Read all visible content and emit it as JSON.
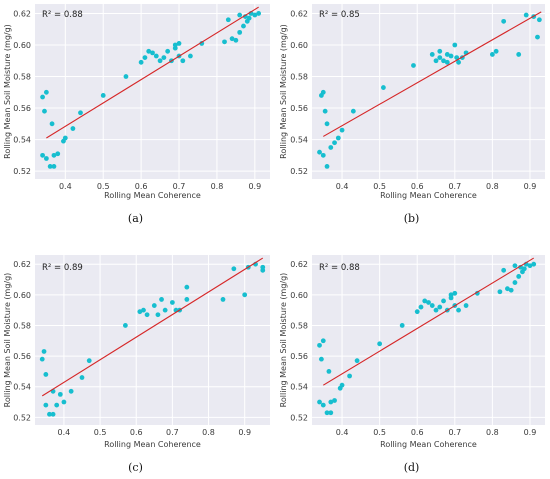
{
  "figure": {
    "colors": {
      "background": "#eaeaf2",
      "grid": "#ffffff",
      "point": "#17becf",
      "fit_line": "#d62728"
    }
  },
  "chart_data": [
    {
      "type": "scatter",
      "caption": "(a)",
      "annotation": "R² = 0.88",
      "xlabel": "Rolling Mean Coherence",
      "ylabel": "Rolling Mean Soil Moisture (mg/g)",
      "xlim": [
        0.32,
        0.94
      ],
      "ylim": [
        0.515,
        0.626
      ],
      "xticks": [
        "0.4",
        "0.5",
        "0.6",
        "0.7",
        "0.8",
        "0.9"
      ],
      "yticks": [
        "0.52",
        "0.54",
        "0.56",
        "0.58",
        "0.60",
        "0.62"
      ],
      "grid": true,
      "fit_line": {
        "x": [
          0.35,
          0.91
        ],
        "y": [
          0.541,
          0.624
        ]
      },
      "points": [
        [
          0.34,
          0.567
        ],
        [
          0.35,
          0.57
        ],
        [
          0.345,
          0.558
        ],
        [
          0.34,
          0.53
        ],
        [
          0.35,
          0.528
        ],
        [
          0.36,
          0.523
        ],
        [
          0.37,
          0.523
        ],
        [
          0.365,
          0.55
        ],
        [
          0.37,
          0.53
        ],
        [
          0.38,
          0.531
        ],
        [
          0.395,
          0.539
        ],
        [
          0.4,
          0.541
        ],
        [
          0.42,
          0.547
        ],
        [
          0.44,
          0.557
        ],
        [
          0.5,
          0.568
        ],
        [
          0.56,
          0.58
        ],
        [
          0.6,
          0.589
        ],
        [
          0.61,
          0.592
        ],
        [
          0.62,
          0.596
        ],
        [
          0.63,
          0.595
        ],
        [
          0.64,
          0.593
        ],
        [
          0.65,
          0.59
        ],
        [
          0.66,
          0.592
        ],
        [
          0.67,
          0.596
        ],
        [
          0.68,
          0.59
        ],
        [
          0.69,
          0.598
        ],
        [
          0.69,
          0.6
        ],
        [
          0.7,
          0.601
        ],
        [
          0.7,
          0.593
        ],
        [
          0.71,
          0.59
        ],
        [
          0.73,
          0.593
        ],
        [
          0.76,
          0.601
        ],
        [
          0.82,
          0.602
        ],
        [
          0.83,
          0.616
        ],
        [
          0.84,
          0.604
        ],
        [
          0.85,
          0.603
        ],
        [
          0.86,
          0.608
        ],
        [
          0.87,
          0.612
        ],
        [
          0.875,
          0.618
        ],
        [
          0.88,
          0.615
        ],
        [
          0.885,
          0.617
        ],
        [
          0.89,
          0.62
        ],
        [
          0.9,
          0.619
        ],
        [
          0.91,
          0.62
        ],
        [
          0.86,
          0.619
        ]
      ]
    },
    {
      "type": "scatter",
      "caption": "(b)",
      "annotation": "R² = 0.85",
      "xlabel": "Rolling Mean Coherence",
      "ylabel": "Rolling Mean Soil Moisture (mg/g)",
      "xlim": [
        0.32,
        0.94
      ],
      "ylim": [
        0.515,
        0.626
      ],
      "xticks": [
        "0.4",
        "0.5",
        "0.6",
        "0.7",
        "0.8",
        "0.9"
      ],
      "yticks": [
        "0.52",
        "0.54",
        "0.56",
        "0.58",
        "0.60",
        "0.62"
      ],
      "grid": true,
      "fit_line": {
        "x": [
          0.35,
          0.93
        ],
        "y": [
          0.542,
          0.621
        ]
      },
      "points": [
        [
          0.34,
          0.532
        ],
        [
          0.35,
          0.53
        ],
        [
          0.36,
          0.523
        ],
        [
          0.37,
          0.535
        ],
        [
          0.345,
          0.568
        ],
        [
          0.35,
          0.57
        ],
        [
          0.355,
          0.558
        ],
        [
          0.36,
          0.55
        ],
        [
          0.38,
          0.538
        ],
        [
          0.39,
          0.541
        ],
        [
          0.4,
          0.546
        ],
        [
          0.43,
          0.558
        ],
        [
          0.51,
          0.573
        ],
        [
          0.59,
          0.587
        ],
        [
          0.64,
          0.594
        ],
        [
          0.65,
          0.59
        ],
        [
          0.66,
          0.592
        ],
        [
          0.67,
          0.59
        ],
        [
          0.68,
          0.589
        ],
        [
          0.69,
          0.593
        ],
        [
          0.7,
          0.6
        ],
        [
          0.705,
          0.592
        ],
        [
          0.71,
          0.589
        ],
        [
          0.72,
          0.592
        ],
        [
          0.73,
          0.595
        ],
        [
          0.66,
          0.596
        ],
        [
          0.68,
          0.594
        ],
        [
          0.8,
          0.594
        ],
        [
          0.81,
          0.596
        ],
        [
          0.83,
          0.615
        ],
        [
          0.87,
          0.594
        ],
        [
          0.89,
          0.619
        ],
        [
          0.91,
          0.618
        ],
        [
          0.92,
          0.605
        ],
        [
          0.925,
          0.616
        ]
      ]
    },
    {
      "type": "scatter",
      "caption": "(c)",
      "annotation": "R² = 0.89",
      "xlabel": "Rolling Mean Coherence",
      "ylabel": "Rolling Mean Soil Moisture (mg/g)",
      "xlim": [
        0.32,
        0.97
      ],
      "ylim": [
        0.515,
        0.626
      ],
      "xticks": [
        "0.4",
        "0.5",
        "0.6",
        "0.7",
        "0.8",
        "0.9"
      ],
      "yticks": [
        "0.52",
        "0.54",
        "0.56",
        "0.58",
        "0.60",
        "0.62"
      ],
      "grid": true,
      "fit_line": {
        "x": [
          0.34,
          0.95
        ],
        "y": [
          0.534,
          0.624
        ]
      },
      "points": [
        [
          0.34,
          0.558
        ],
        [
          0.345,
          0.563
        ],
        [
          0.35,
          0.548
        ],
        [
          0.35,
          0.528
        ],
        [
          0.36,
          0.522
        ],
        [
          0.37,
          0.522
        ],
        [
          0.37,
          0.537
        ],
        [
          0.38,
          0.528
        ],
        [
          0.39,
          0.535
        ],
        [
          0.4,
          0.53
        ],
        [
          0.42,
          0.537
        ],
        [
          0.45,
          0.546
        ],
        [
          0.47,
          0.557
        ],
        [
          0.57,
          0.58
        ],
        [
          0.61,
          0.589
        ],
        [
          0.62,
          0.59
        ],
        [
          0.63,
          0.587
        ],
        [
          0.65,
          0.593
        ],
        [
          0.66,
          0.587
        ],
        [
          0.67,
          0.597
        ],
        [
          0.68,
          0.59
        ],
        [
          0.7,
          0.595
        ],
        [
          0.71,
          0.59
        ],
        [
          0.72,
          0.59
        ],
        [
          0.74,
          0.605
        ],
        [
          0.74,
          0.597
        ],
        [
          0.84,
          0.597
        ],
        [
          0.87,
          0.617
        ],
        [
          0.9,
          0.6
        ],
        [
          0.91,
          0.618
        ],
        [
          0.93,
          0.62
        ],
        [
          0.95,
          0.616
        ],
        [
          0.95,
          0.618
        ]
      ]
    },
    {
      "type": "scatter",
      "caption": "(d)",
      "annotation": "R² = 0.88",
      "xlabel": "Rolling Mean Coherence",
      "ylabel": "Rolling Mean Soil Moisture (mg/g)",
      "xlim": [
        0.32,
        0.94
      ],
      "ylim": [
        0.515,
        0.626
      ],
      "xticks": [
        "0.4",
        "0.5",
        "0.6",
        "0.7",
        "0.8",
        "0.9"
      ],
      "yticks": [
        "0.52",
        "0.54",
        "0.56",
        "0.58",
        "0.60",
        "0.62"
      ],
      "grid": true,
      "fit_line": {
        "x": [
          0.35,
          0.91
        ],
        "y": [
          0.541,
          0.624
        ]
      },
      "points": [
        [
          0.34,
          0.567
        ],
        [
          0.35,
          0.57
        ],
        [
          0.345,
          0.558
        ],
        [
          0.34,
          0.53
        ],
        [
          0.35,
          0.528
        ],
        [
          0.36,
          0.523
        ],
        [
          0.37,
          0.523
        ],
        [
          0.365,
          0.55
        ],
        [
          0.37,
          0.53
        ],
        [
          0.38,
          0.531
        ],
        [
          0.395,
          0.539
        ],
        [
          0.4,
          0.541
        ],
        [
          0.42,
          0.547
        ],
        [
          0.44,
          0.557
        ],
        [
          0.5,
          0.568
        ],
        [
          0.56,
          0.58
        ],
        [
          0.6,
          0.589
        ],
        [
          0.61,
          0.592
        ],
        [
          0.62,
          0.596
        ],
        [
          0.63,
          0.595
        ],
        [
          0.64,
          0.593
        ],
        [
          0.65,
          0.59
        ],
        [
          0.66,
          0.592
        ],
        [
          0.67,
          0.596
        ],
        [
          0.68,
          0.59
        ],
        [
          0.69,
          0.598
        ],
        [
          0.69,
          0.6
        ],
        [
          0.7,
          0.601
        ],
        [
          0.7,
          0.593
        ],
        [
          0.71,
          0.59
        ],
        [
          0.73,
          0.593
        ],
        [
          0.76,
          0.601
        ],
        [
          0.82,
          0.602
        ],
        [
          0.83,
          0.616
        ],
        [
          0.84,
          0.604
        ],
        [
          0.85,
          0.603
        ],
        [
          0.86,
          0.608
        ],
        [
          0.87,
          0.612
        ],
        [
          0.875,
          0.618
        ],
        [
          0.88,
          0.615
        ],
        [
          0.885,
          0.617
        ],
        [
          0.89,
          0.62
        ],
        [
          0.9,
          0.619
        ],
        [
          0.91,
          0.62
        ],
        [
          0.86,
          0.619
        ]
      ]
    }
  ]
}
